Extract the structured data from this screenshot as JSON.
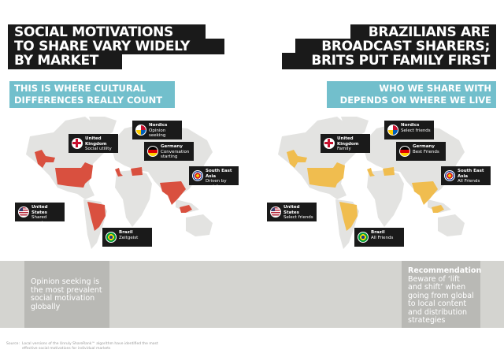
{
  "left": {
    "title_lines": [
      "SOCIAL MOTIVATIONS",
      "TO SHARE VARY WIDELY",
      "BY MARKET"
    ],
    "subtitle_lines": [
      "THIS IS WHERE CULTURAL",
      "DIFFERENCES REALLY COUNT"
    ],
    "highlight_color": "#d9503f",
    "callouts": {
      "uk": {
        "region": "United Kingdom",
        "text": "Social utility",
        "flag": "uk-flag-icon"
      },
      "nordics": {
        "region": "Nordics",
        "text": "Opinion seeking",
        "flag": "nordics-flags-icon"
      },
      "germany": {
        "region": "Germany",
        "text": "Conversation starting",
        "flag": "germany-flag-icon"
      },
      "sea": {
        "region": "South East Asia",
        "text": "Driven by social motivations",
        "flag": "asean-emblem-icon"
      },
      "us": {
        "region": "United States",
        "text": "Shared passion",
        "flag": "us-flag-icon"
      },
      "brazil": {
        "region": "Brazil",
        "text": "Zeitgeist",
        "flag": "brazil-flag-icon"
      }
    },
    "insight": "Opinion seeking is the most prevalent social motivation globally"
  },
  "right": {
    "title_lines": [
      "BRAZILIANS ARE",
      "BROADCAST SHARERS;",
      "BRITS PUT FAMILY FIRST"
    ],
    "subtitle_lines": [
      "WHO WE SHARE WITH",
      "DEPENDS ON WHERE WE LIVE"
    ],
    "highlight_color": "#f0bd4f",
    "callouts": {
      "uk": {
        "region": "United Kingdom",
        "text": "Family",
        "flag": "uk-flag-icon"
      },
      "nordics": {
        "region": "Nordics",
        "text": "Select friends",
        "flag": "nordics-flags-icon"
      },
      "germany": {
        "region": "Germany",
        "text": "Best Friends",
        "flag": "germany-flag-icon"
      },
      "sea": {
        "region": "South East Asia",
        "text": "All Friends",
        "flag": "asean-emblem-icon"
      },
      "us": {
        "region": "United States",
        "text": "Select friends",
        "flag": "us-flag-icon"
      },
      "brazil": {
        "region": "Brazil",
        "text": "All Friends",
        "flag": "brazil-flag-icon"
      }
    },
    "recommendation_label": "Recommendation",
    "recommendation": "Beware of ‘lift and shift’ when going from global to local content and distribution strategies"
  },
  "source_label": "Source:",
  "source_text": "Local versions of the Unruly ShareRank™ algorithm have identified the most effective social motivations for individual markets"
}
